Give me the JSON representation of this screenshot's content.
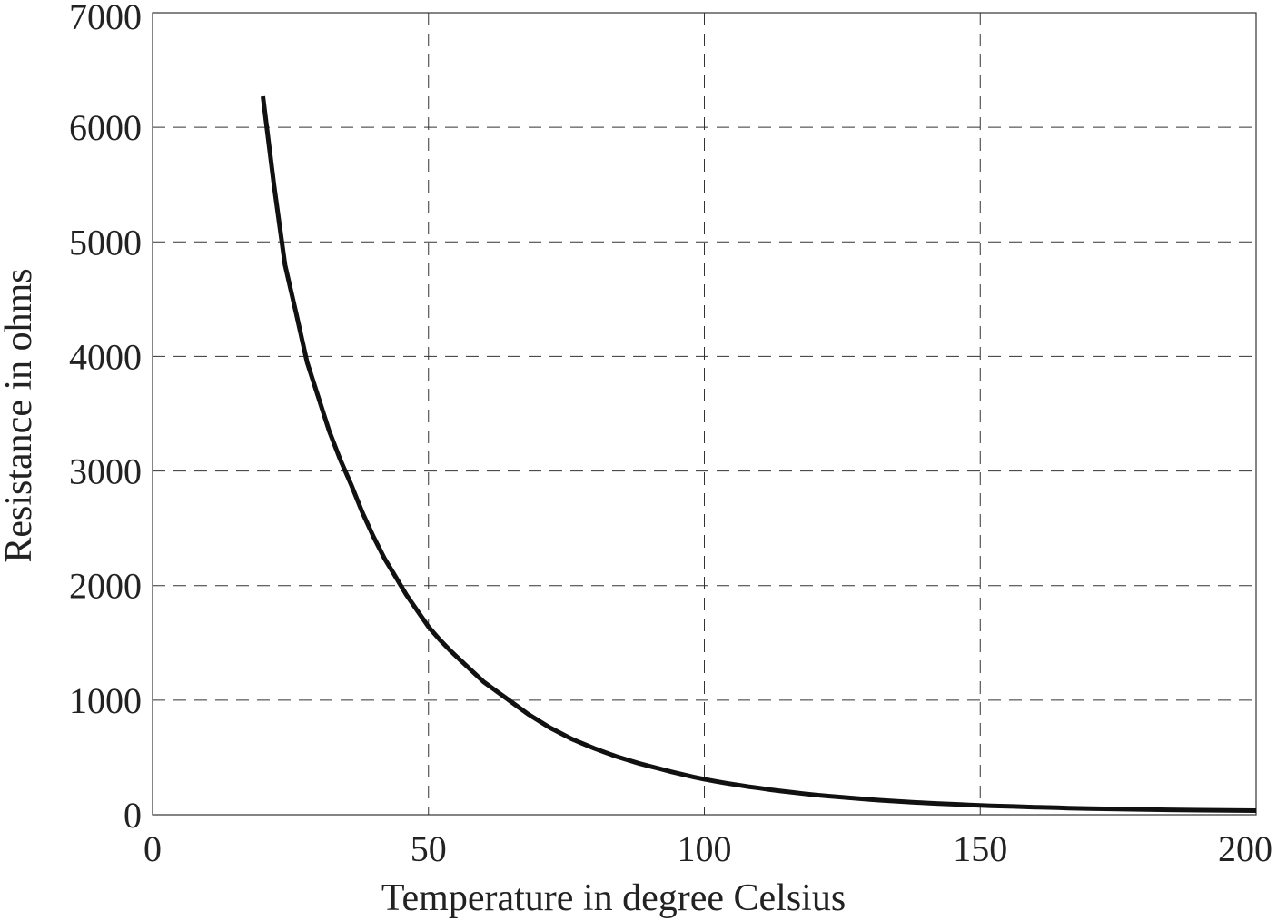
{
  "chart_data": {
    "type": "line",
    "xlabel": "Temperature in degree Celsius",
    "ylabel": "Resistance in ohms",
    "xlim": [
      0,
      200
    ],
    "ylim": [
      0,
      7000
    ],
    "xticks": [
      "0",
      "50",
      "100",
      "150",
      "200"
    ],
    "yticks": [
      "0",
      "1000",
      "2000",
      "3000",
      "4000",
      "5000",
      "6000",
      "7000"
    ],
    "grid": true,
    "line_color": "#111111",
    "series": [
      {
        "x": [
          20,
          22,
          24,
          26,
          28,
          30,
          32,
          34,
          36,
          38,
          40,
          42,
          44,
          46,
          48,
          50,
          52,
          54,
          56,
          58,
          60,
          62,
          64,
          66,
          68,
          70,
          72,
          74,
          76,
          78,
          80,
          82,
          84,
          86,
          88,
          90,
          92,
          94,
          96,
          98,
          100,
          102,
          104,
          106,
          108,
          110,
          112,
          114,
          116,
          118,
          120,
          122,
          124,
          126,
          128,
          130,
          132,
          134,
          136,
          138,
          140,
          142,
          144,
          146,
          148,
          150,
          152,
          156,
          160,
          164,
          166,
          170,
          175,
          180,
          184,
          186,
          190,
          195,
          200
        ],
        "values": [
          6270,
          5500,
          4800,
          4380,
          3950,
          3650,
          3350,
          3100,
          2880,
          2640,
          2430,
          2240,
          2080,
          1920,
          1780,
          1640,
          1530,
          1430,
          1340,
          1250,
          1160,
          1090,
          1020,
          950,
          880,
          820,
          760,
          710,
          660,
          620,
          580,
          545,
          510,
          480,
          450,
          425,
          400,
          375,
          352,
          330,
          310,
          292,
          275,
          260,
          245,
          232,
          218,
          206,
          195,
          184,
          174,
          165,
          156,
          148,
          140,
          133,
          126,
          120,
          114,
          108,
          103,
          98,
          94,
          90,
          86,
          82,
          78,
          72,
          66,
          62,
          58,
          54,
          50,
          46,
          43,
          42,
          40,
          38,
          36
        ]
      }
    ]
  }
}
